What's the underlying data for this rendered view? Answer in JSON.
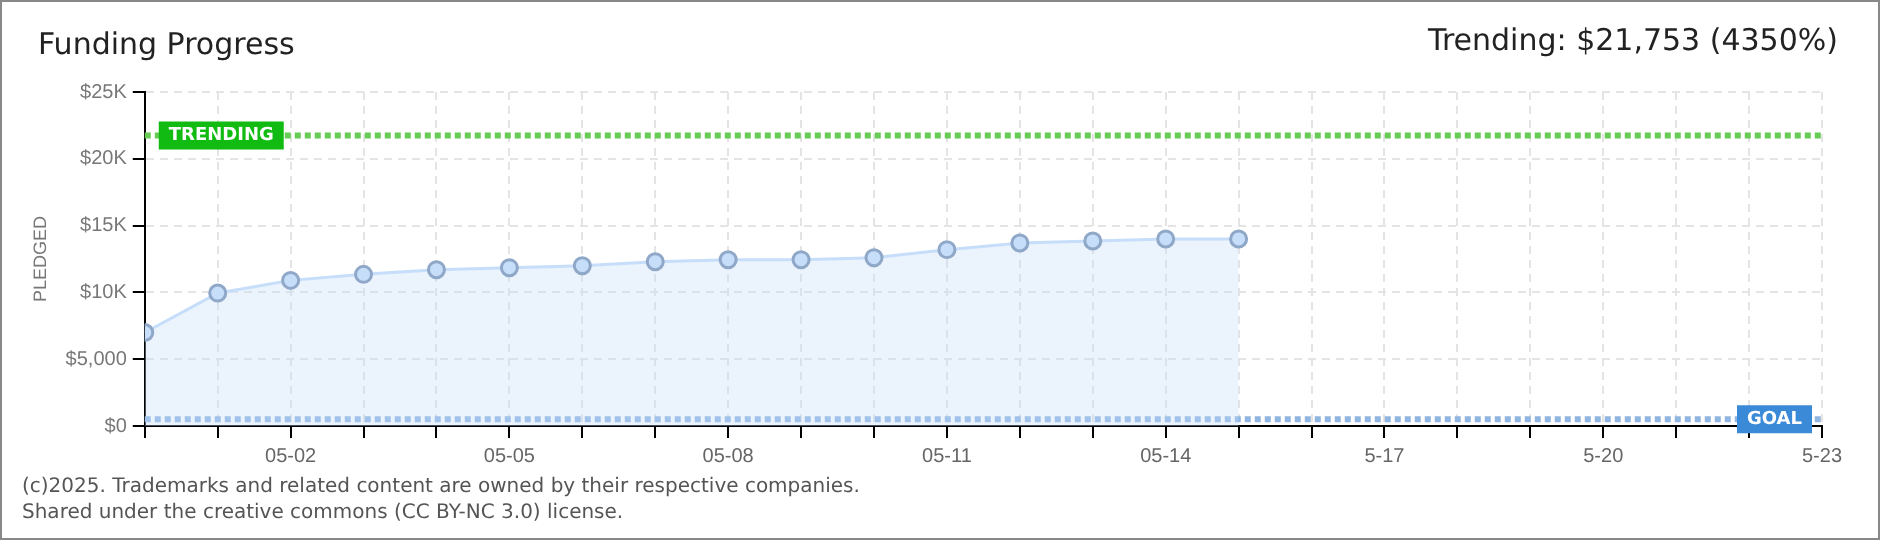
{
  "chart_data": {
    "type": "area",
    "title": "Funding Progress",
    "ylabel": "PLEDGED",
    "annotations": [
      "Trending:  $21,753 (4350%)",
      "(c)2025. Trademarks and related content are owned by their respective companies.",
      "Shared under the creative commons (CC BY-NC 3.0) license."
    ],
    "x": [
      "--04-30",
      "--05-01",
      "--05-02",
      "--05-03",
      "--05-04",
      "--05-05",
      "--05-06",
      "--05-07",
      "--05-08",
      "--05-09",
      "--05-10",
      "--05-11",
      "--05-12",
      "--05-13",
      "--05-14",
      "--05-15"
    ],
    "series": [
      {
        "color": "#c6defa",
        "values": [
          7000,
          9950,
          10900,
          11350,
          11700,
          11850,
          12000,
          12300,
          12450,
          12450,
          12600,
          13200,
          13700,
          13850,
          14000,
          14000
        ]
      }
    ],
    "xlim": [
      "--04-30",
      "--05-23"
    ],
    "xticks": [
      {
        "value": "--04-30",
        "label": null
      },
      {
        "value": "--05-01",
        "label": null
      },
      {
        "value": "--05-02",
        "label": "05-02"
      },
      {
        "value": "--05-03",
        "label": null
      },
      {
        "value": "--05-04",
        "label": null
      },
      {
        "value": "--05-05",
        "label": "05-05"
      },
      {
        "value": "--05-06",
        "label": null
      },
      {
        "value": "--05-07",
        "label": null
      },
      {
        "value": "--05-08",
        "label": "05-08"
      },
      {
        "value": "--05-09",
        "label": null
      },
      {
        "value": "--05-10",
        "label": null
      },
      {
        "value": "--05-11",
        "label": "05-11"
      },
      {
        "value": "--05-12",
        "label": null
      },
      {
        "value": "--05-13",
        "label": null
      },
      {
        "value": "--05-14",
        "label": "05-14"
      },
      {
        "value": "--05-15",
        "label": null
      },
      {
        "value": "--05-16",
        "label": null
      },
      {
        "value": "--05-17",
        "label": "5-17"
      },
      {
        "value": "--05-18",
        "label": null
      },
      {
        "value": "--05-19",
        "label": null
      },
      {
        "value": "--05-20",
        "label": "5-20"
      },
      {
        "value": "--05-21",
        "label": null
      },
      {
        "value": "--05-22",
        "label": null
      },
      {
        "value": "--05-23",
        "label": "5-23"
      }
    ],
    "ylim": [
      0,
      25000
    ],
    "yticks": [
      {
        "value": 0,
        "label": "$0"
      },
      {
        "value": 5000,
        "label": "$5,000"
      },
      {
        "value": 10000,
        "label": "$10K"
      },
      {
        "value": 15000,
        "label": "$15K"
      },
      {
        "value": 20000,
        "label": "$20K"
      },
      {
        "value": 25000,
        "label": "$25K"
      }
    ],
    "ref_lines": [
      {
        "axis": "y",
        "value": 21753,
        "label": "TRENDING",
        "color": "#66cc55",
        "line_style": "dotted"
      },
      {
        "axis": "y",
        "value": 500,
        "label": "GOAL",
        "color": "#8fb5e0",
        "line_style": "dotted"
      }
    ],
    "grid": true,
    "legend": false,
    "marker": "circle"
  }
}
